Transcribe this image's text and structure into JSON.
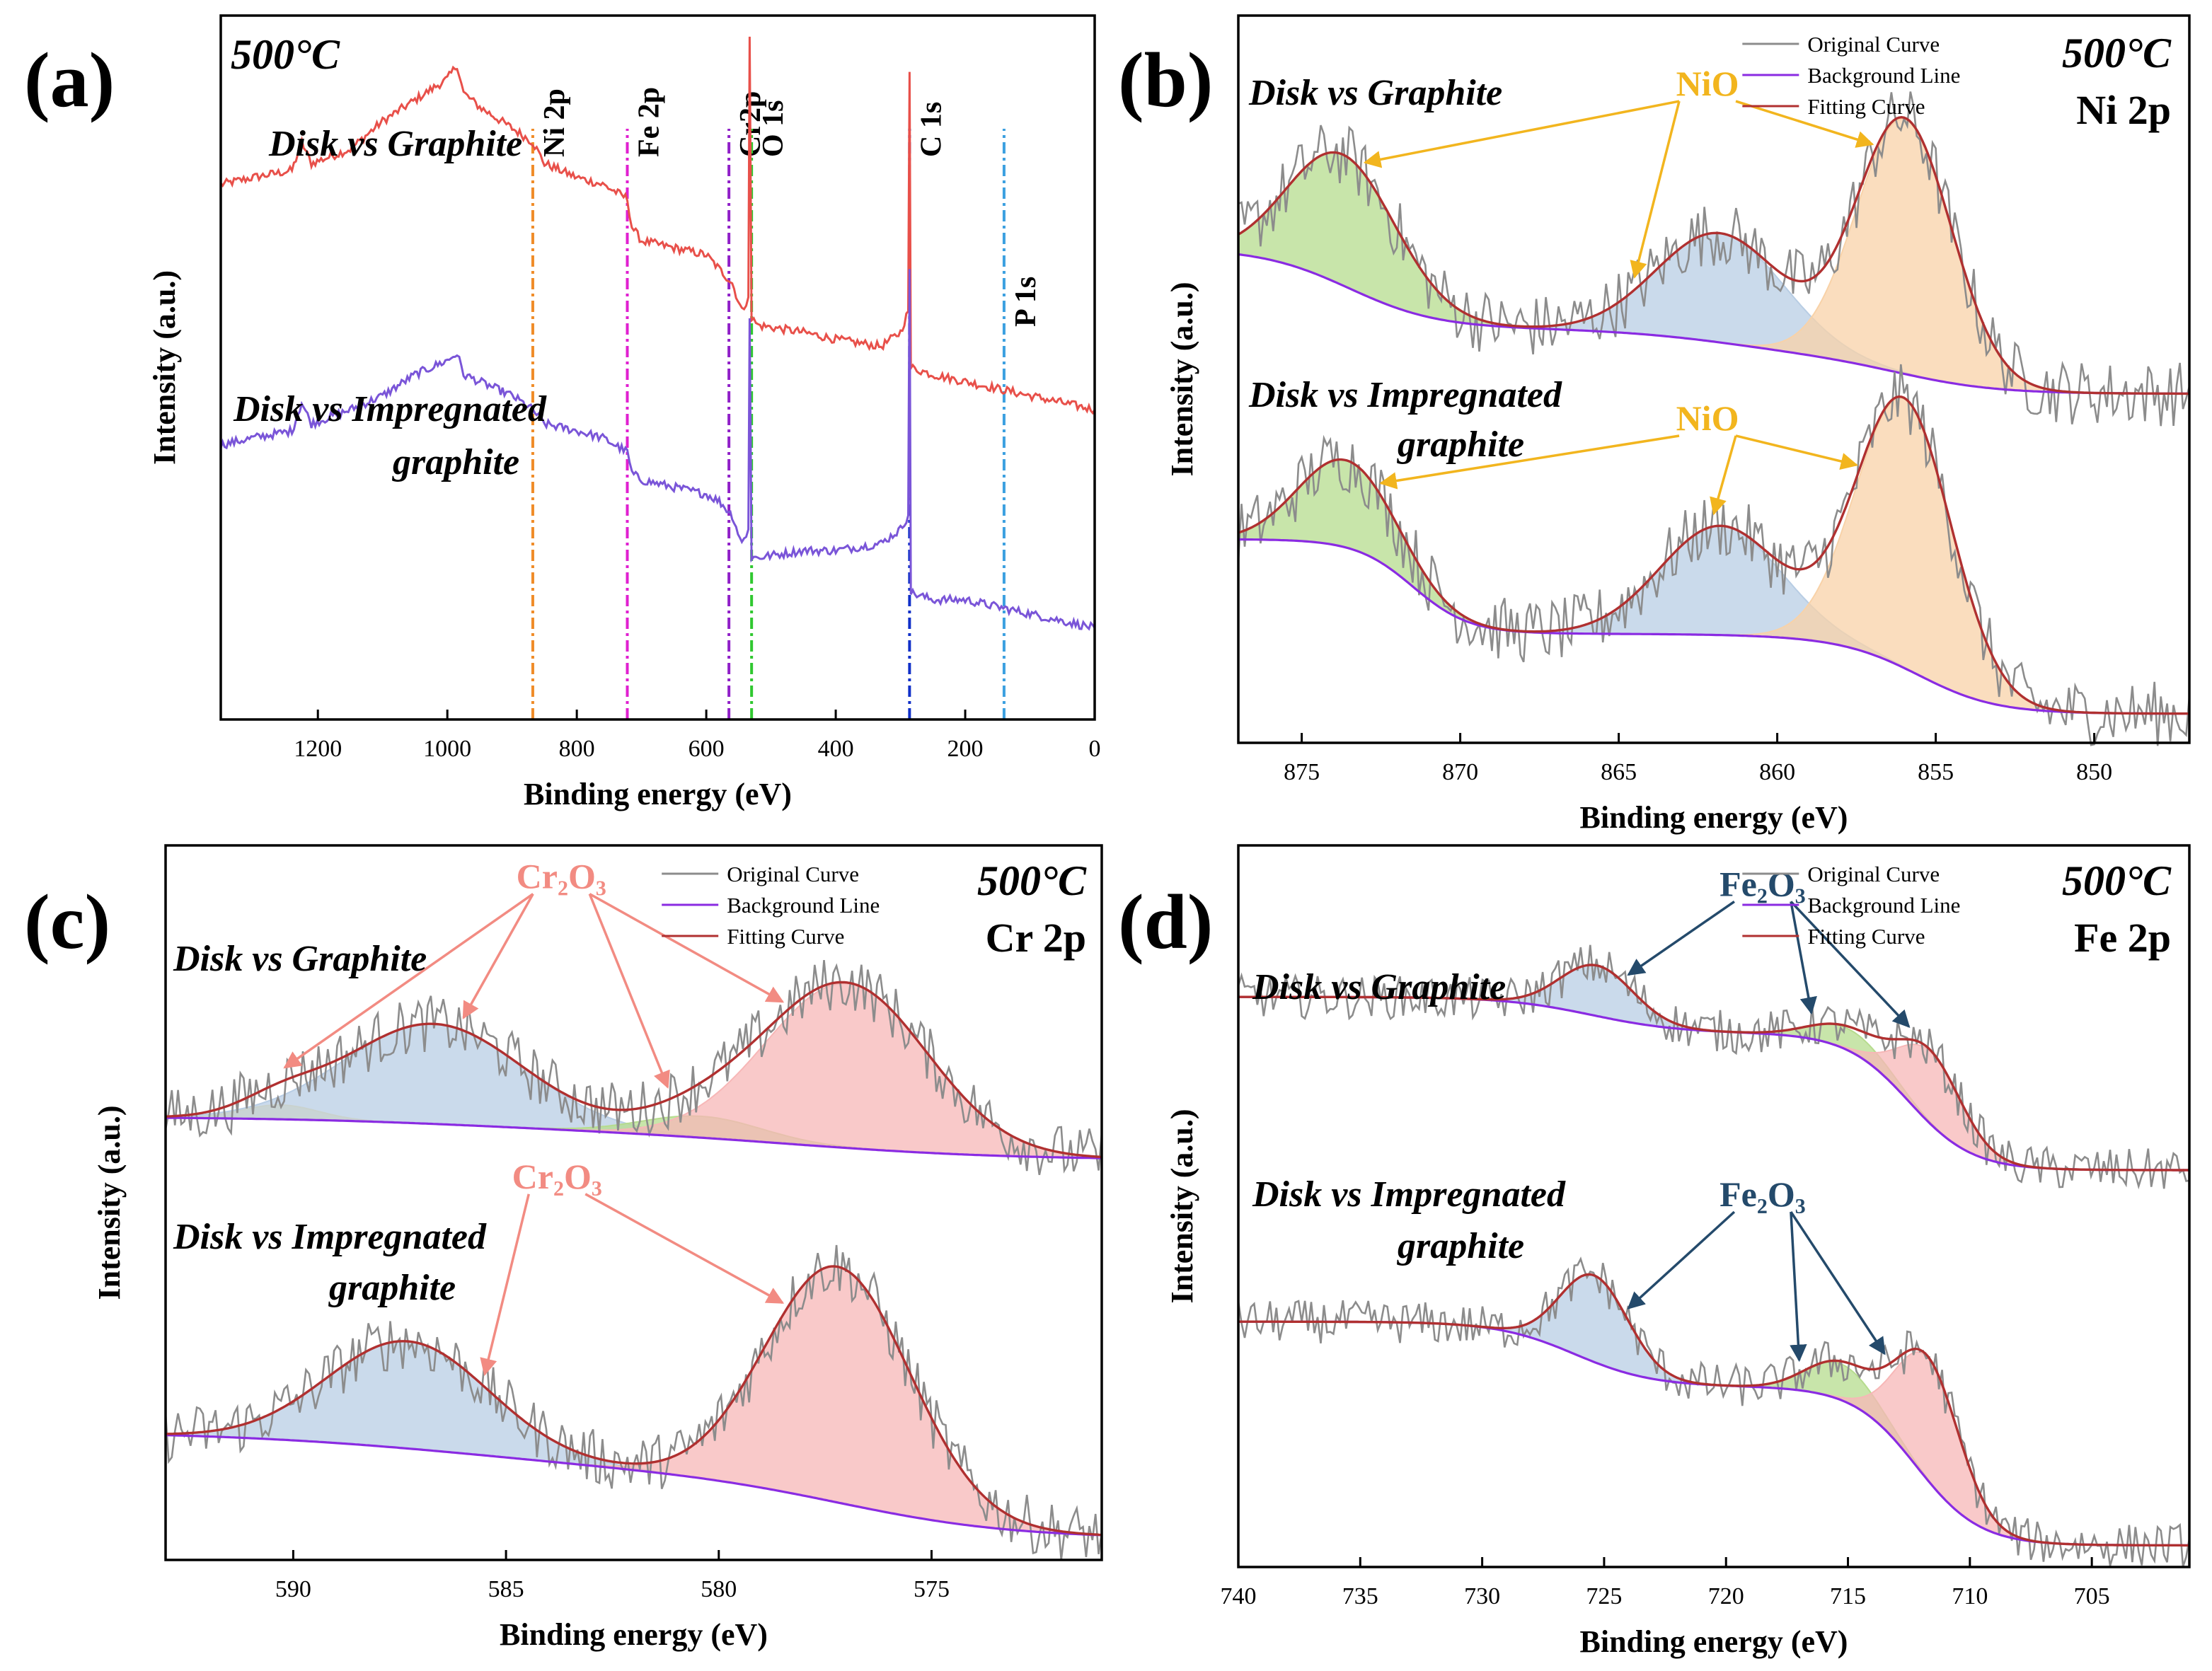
{
  "figure": {
    "panel_labels": [
      "(a)",
      "(b)",
      "(c)",
      "(d)"
    ]
  },
  "colors": {
    "original": "#8c8c8c",
    "background": "#8a2be2",
    "fitting": "#b03030",
    "green_fill": "#b6dc8e",
    "blue_fill": "#b8cde4",
    "orange_fill": "#f8d2a8",
    "pink_fill": "#f7b7b7",
    "yellow_fill": "#f9e08a",
    "nio_annot": "#f2b51e",
    "cr_annot": "#f28b82",
    "fe_annot": "#244a6b"
  },
  "chart_data": [
    {
      "id": "a",
      "type": "line",
      "panel_label": "(a)",
      "temperature": "500°C",
      "xlabel": "Binding energy (eV)",
      "ylabel": "Intensity (a.u.)",
      "xlim": [
        1350,
        0
      ],
      "xticks": [
        1200,
        1000,
        800,
        600,
        400,
        200,
        0
      ],
      "series": [
        {
          "name": "Disk vs Graphite",
          "color": "#e8504a",
          "points": [
            [
              1350,
              0.76
            ],
            [
              1300,
              0.77
            ],
            [
              1240,
              0.78
            ],
            [
              1225,
              0.82
            ],
            [
              1210,
              0.79
            ],
            [
              1150,
              0.81
            ],
            [
              1100,
              0.85
            ],
            [
              1050,
              0.88
            ],
            [
              1000,
              0.91
            ],
            [
              985,
              0.93
            ],
            [
              975,
              0.89
            ],
            [
              950,
              0.87
            ],
            [
              900,
              0.84
            ],
            [
              868,
              0.82
            ],
            [
              850,
              0.79
            ],
            [
              800,
              0.77
            ],
            [
              760,
              0.76
            ],
            [
              722,
              0.74
            ],
            [
              715,
              0.7
            ],
            [
              700,
              0.68
            ],
            [
              650,
              0.67
            ],
            [
              600,
              0.66
            ],
            [
              580,
              0.64
            ],
            [
              560,
              0.62
            ],
            [
              545,
              0.58
            ],
            [
              535,
              0.6
            ],
            [
              533,
              0.97
            ],
            [
              530,
              0.57
            ],
            [
              520,
              0.56
            ],
            [
              450,
              0.55
            ],
            [
              400,
              0.54
            ],
            [
              330,
              0.53
            ],
            [
              300,
              0.55
            ],
            [
              288,
              0.58
            ],
            [
              286,
              0.92
            ],
            [
              284,
              0.5
            ],
            [
              250,
              0.49
            ],
            [
              200,
              0.48
            ],
            [
              150,
              0.47
            ],
            [
              100,
              0.46
            ],
            [
              50,
              0.45
            ],
            [
              0,
              0.44
            ]
          ]
        },
        {
          "name": "Disk vs Impregnated graphite",
          "color": "#7a55d8",
          "points": [
            [
              1350,
              0.39
            ],
            [
              1300,
              0.4
            ],
            [
              1240,
              0.41
            ],
            [
              1225,
              0.45
            ],
            [
              1210,
              0.42
            ],
            [
              1150,
              0.44
            ],
            [
              1100,
              0.46
            ],
            [
              1050,
              0.49
            ],
            [
              1000,
              0.51
            ],
            [
              985,
              0.52
            ],
            [
              975,
              0.49
            ],
            [
              950,
              0.48
            ],
            [
              900,
              0.46
            ],
            [
              868,
              0.44
            ],
            [
              850,
              0.42
            ],
            [
              800,
              0.41
            ],
            [
              760,
              0.4
            ],
            [
              722,
              0.38
            ],
            [
              715,
              0.35
            ],
            [
              700,
              0.34
            ],
            [
              650,
              0.33
            ],
            [
              600,
              0.32
            ],
            [
              580,
              0.31
            ],
            [
              560,
              0.29
            ],
            [
              545,
              0.25
            ],
            [
              535,
              0.27
            ],
            [
              533,
              0.57
            ],
            [
              530,
              0.23
            ],
            [
              520,
              0.23
            ],
            [
              450,
              0.24
            ],
            [
              400,
              0.24
            ],
            [
              330,
              0.25
            ],
            [
              300,
              0.27
            ],
            [
              288,
              0.29
            ],
            [
              286,
              0.64
            ],
            [
              284,
              0.18
            ],
            [
              250,
              0.17
            ],
            [
              200,
              0.17
            ],
            [
              150,
              0.16
            ],
            [
              100,
              0.15
            ],
            [
              50,
              0.14
            ],
            [
              0,
              0.13
            ]
          ]
        }
      ],
      "series_labels": [
        {
          "text": "Disk vs Graphite"
        },
        {
          "text": "Disk vs Impregnated"
        },
        {
          "text": "graphite"
        }
      ],
      "reference_lines": [
        {
          "label": "Ni 2p",
          "x": 868,
          "color": "#f08c28"
        },
        {
          "label": "Fe 2p",
          "x": 722,
          "color": "#e020d0"
        },
        {
          "label": "Cr2p",
          "x": 565,
          "color": "#9020c8"
        },
        {
          "label": "O 1s",
          "x": 530,
          "color": "#30c830"
        },
        {
          "label": "C 1s",
          "x": 286,
          "color": "#1030c8"
        },
        {
          "label": "P 1s",
          "x": 140,
          "color": "#3ca0e0"
        }
      ]
    },
    {
      "id": "b",
      "type": "area",
      "panel_label": "(b)",
      "temperature": "500°C",
      "orbital": "Ni 2p",
      "xlabel": "Binding energy (eV)",
      "ylabel": "Intensity (a.u.)",
      "xlim": [
        877,
        847
      ],
      "xticks": [
        875,
        870,
        865,
        860,
        855,
        850
      ],
      "legend": [
        "Original Curve",
        "Background Line",
        "Fitting Curve"
      ],
      "annotation": "NiO",
      "noise": 0.045,
      "series": [
        {
          "name": "Disk vs Graphite",
          "background": {
            "high": 0.67,
            "low": 0.48,
            "steps": [
              [
                873.5,
                0.11,
                1.4
              ],
              [
                861.5,
                0.04,
                2.0
              ],
              [
                856,
                0.05,
                1.5
              ]
            ]
          },
          "peaks": [
            {
              "center": 873.7,
              "height": 0.18,
              "width": 1.7,
              "fill": "green"
            },
            {
              "center": 861.8,
              "height": 0.15,
              "width": 2.0,
              "fill": "blue"
            },
            {
              "center": 856.0,
              "height": 0.35,
              "width": 1.5,
              "fill": "orange"
            }
          ]
        },
        {
          "name": "Disk vs Impregnated graphite",
          "background": {
            "high": 0.28,
            "low": 0.04,
            "steps": [
              [
                871.5,
                0.13,
                0.9
              ],
              [
                858,
                0.01,
                2.0
              ],
              [
                855.5,
                0.1,
                1.2
              ]
            ]
          },
          "peaks": [
            {
              "center": 873.6,
              "height": 0.12,
              "width": 1.5,
              "fill": "green"
            },
            {
              "center": 861.8,
              "height": 0.15,
              "width": 1.9,
              "fill": "blue"
            },
            {
              "center": 856.0,
              "height": 0.37,
              "width": 1.5,
              "fill": "orange"
            }
          ]
        }
      ],
      "series_labels": [
        {
          "text": "Disk vs Graphite"
        },
        {
          "text": "Disk vs Impregnated"
        },
        {
          "text": "graphite"
        }
      ],
      "annotations": [
        {
          "text": "NiO",
          "group": 0,
          "targets": [
            873,
            864.5,
            857
          ]
        },
        {
          "text": "NiO",
          "group": 1,
          "targets": [
            872.5,
            862,
            857.5
          ]
        }
      ]
    },
    {
      "id": "c",
      "type": "area",
      "panel_label": "(c)",
      "temperature": "500°C",
      "orbital": "Cr 2p",
      "xlabel": "Binding energy (eV)",
      "ylabel": "Intensity (a.u.)",
      "xlim": [
        593,
        571
      ],
      "xticks": [
        590,
        585,
        580,
        575
      ],
      "legend": [
        "Original Curve",
        "Background Line",
        "Fitting Curve"
      ],
      "annotation": "Cr₂O₃",
      "noise": 0.04,
      "series": [
        {
          "name": "Disk vs Graphite",
          "background": {
            "high": 0.64,
            "low": 0.56,
            "steps": [
              [
                586,
                0.02,
                2.5
              ],
              [
                578,
                0.04,
                2.5
              ]
            ]
          },
          "peaks": [
            {
              "center": 590.3,
              "height": 0.02,
              "width": 0.9,
              "fill": "yellow"
            },
            {
              "center": 586.7,
              "height": 0.14,
              "width": 2.1,
              "fill": "blue"
            },
            {
              "center": 580.4,
              "height": 0.03,
              "width": 1.4,
              "fill": "green"
            },
            {
              "center": 577.0,
              "height": 0.23,
              "width": 1.9,
              "fill": "pink"
            }
          ]
        },
        {
          "name": "Disk vs Impregnated graphite",
          "background": {
            "high": 0.21,
            "low": 0.03,
            "steps": [
              [
                586,
                0.06,
                3.0
              ],
              [
                577,
                0.09,
                2.0
              ]
            ]
          },
          "peaks": [
            {
              "center": 587.3,
              "height": 0.15,
              "width": 1.9,
              "fill": "blue"
            },
            {
              "center": 577.2,
              "height": 0.33,
              "width": 1.7,
              "fill": "pink"
            }
          ]
        }
      ],
      "series_labels": [
        {
          "text": "Disk vs Graphite"
        },
        {
          "text": "Disk vs Impregnated"
        },
        {
          "text": "graphite"
        }
      ],
      "annotations": [
        {
          "text": "Cr₂O₃",
          "group": 0,
          "targets": [
            590.2,
            586,
            581.2,
            578.5
          ]
        },
        {
          "text": "Cr₂O₃",
          "group": 1,
          "targets": [
            585.5,
            578.5
          ]
        }
      ]
    },
    {
      "id": "d",
      "type": "area",
      "panel_label": "(d)",
      "temperature": "500°C",
      "orbital": "Fe 2p",
      "xlabel": "Binding energy (eV)",
      "ylabel": "Intensity (a.u.)",
      "xlim": [
        740,
        701
      ],
      "xticks": [
        740,
        735,
        730,
        725,
        720,
        715,
        710,
        705
      ],
      "legend": [
        "Original Curve",
        "Background Line",
        "Fitting Curve"
      ],
      "annotation": "Fe₂O₃",
      "noise": 0.03,
      "series": [
        {
          "name": "Disk vs Graphite",
          "background": {
            "high": 0.79,
            "low": 0.55,
            "steps": [
              [
                725.5,
                0.05,
                1.8
              ],
              [
                712.5,
                0.19,
                1.3
              ]
            ]
          },
          "peaks": [
            {
              "center": 725.3,
              "height": 0.07,
              "width": 1.5,
              "fill": "blue"
            },
            {
              "center": 715.0,
              "height": 0.03,
              "width": 1.5,
              "fill": "green"
            },
            {
              "center": 711.6,
              "height": 0.1,
              "width": 1.3,
              "fill": "pink"
            }
          ]
        },
        {
          "name": "Disk vs Impregnated graphite",
          "background": {
            "high": 0.34,
            "low": 0.03,
            "steps": [
              [
                726.2,
                0.09,
                1.6
              ],
              [
                712.2,
                0.22,
                1.3
              ]
            ]
          },
          "peaks": [
            {
              "center": 725.4,
              "height": 0.12,
              "width": 1.4,
              "fill": "blue"
            },
            {
              "center": 715.3,
              "height": 0.05,
              "width": 1.4,
              "fill": "green"
            },
            {
              "center": 711.7,
              "height": 0.17,
              "width": 1.3,
              "fill": "pink"
            }
          ]
        }
      ],
      "series_labels": [
        {
          "text": "Disk vs Graphite"
        },
        {
          "text": "Disk vs Impregnated"
        },
        {
          "text": "graphite"
        }
      ],
      "annotations": [
        {
          "text": "Fe₂O₃",
          "group": 0,
          "targets": [
            724,
            716.5,
            712.5
          ]
        },
        {
          "text": "Fe₂O₃",
          "group": 1,
          "targets": [
            724,
            717,
            713.5
          ]
        }
      ]
    }
  ]
}
